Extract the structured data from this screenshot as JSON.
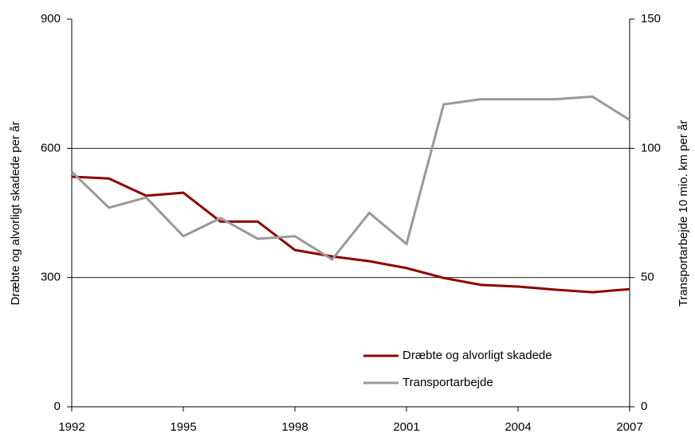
{
  "chart_data": {
    "type": "line",
    "y_label": "Dræbte og alvorligt skadede per år",
    "y2_label": "Transportarbejde 10 mio. km per år",
    "x": [
      1992,
      1993,
      1994,
      1995,
      1996,
      1997,
      1998,
      1999,
      2000,
      2001,
      2002,
      2003,
      2004,
      2005,
      2006,
      2007
    ],
    "xlim": [
      1992,
      2007
    ],
    "xticks": [
      1992,
      1995,
      1998,
      2001,
      2004,
      2007
    ],
    "ylim": [
      0,
      900
    ],
    "yticks": [
      0,
      300,
      600,
      900
    ],
    "y2lim": [
      0,
      150
    ],
    "y2ticks": [
      0,
      50,
      100,
      150
    ],
    "grid": true,
    "legend": "lower right",
    "series": [
      {
        "name": "Dræbte og alvorligt skadede",
        "color": "#8b0000",
        "values": [
          534,
          530,
          490,
          497,
          430,
          430,
          364,
          349,
          338,
          322,
          299,
          283,
          279,
          272,
          266,
          273
        ]
      },
      {
        "name": "Transportarbejde",
        "color": "#999999",
        "axis": "y2",
        "values": [
          91,
          77,
          81,
          66,
          73,
          65,
          66,
          57,
          75,
          63,
          117,
          119,
          119,
          119,
          120,
          111
        ]
      }
    ]
  }
}
